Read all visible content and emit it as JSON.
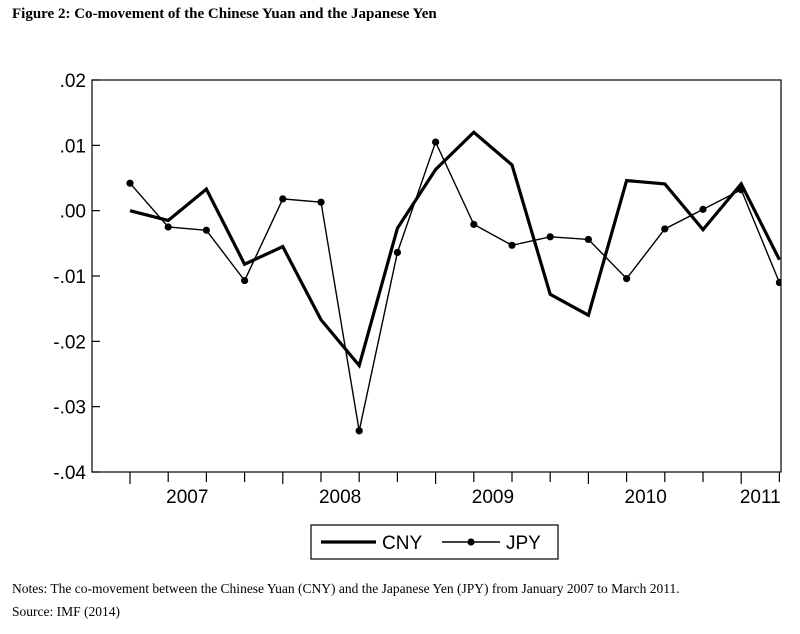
{
  "figure_title": "Figure 2: Co-movement of the Chinese Yuan and the Japanese Yen",
  "notes": "Notes: The co-movement between the Chinese Yuan (CNY) and the Japanese Yen (JPY) from January 2007 to March 2011.",
  "source": "Source: IMF (2014)",
  "chart_data": {
    "type": "line",
    "title": "",
    "xlabel": "",
    "ylabel": "",
    "x": [
      "2007Q1",
      "2007Q2",
      "2007Q3",
      "2007Q4",
      "2008Q1",
      "2008Q2",
      "2008Q3",
      "2008Q4",
      "2009Q1",
      "2009Q2",
      "2009Q3",
      "2009Q4",
      "2010Q1",
      "2010Q2",
      "2010Q3",
      "2010Q4",
      "2011Q1",
      "2011Q2"
    ],
    "xticks": [
      "2007",
      "2008",
      "2009",
      "2010",
      "2011"
    ],
    "ylim": [
      -0.04,
      0.02
    ],
    "yticks": [
      ".02",
      ".01",
      ".00",
      "-.01",
      "-.02",
      "-.03",
      "-.04"
    ],
    "grid": false,
    "legend_position": "bottom-center",
    "series": [
      {
        "name": "CNY",
        "style": "thick-line",
        "color": "#000000",
        "values": [
          0.0,
          -0.0015,
          0.0033,
          -0.0082,
          -0.0055,
          -0.0167,
          -0.0237,
          -0.0027,
          0.0063,
          0.012,
          0.007,
          -0.0128,
          -0.016,
          0.0046,
          0.0041,
          -0.0029,
          0.0041,
          -0.0075
        ]
      },
      {
        "name": "JPY",
        "style": "thin-line-dots",
        "color": "#000000",
        "values": [
          0.0042,
          -0.0025,
          -0.003,
          -0.0107,
          0.0018,
          0.0013,
          -0.0337,
          -0.0064,
          0.0105,
          -0.0021,
          -0.0053,
          -0.004,
          -0.0044,
          -0.0104,
          -0.0028,
          0.0002,
          0.0032,
          -0.011
        ]
      }
    ]
  }
}
